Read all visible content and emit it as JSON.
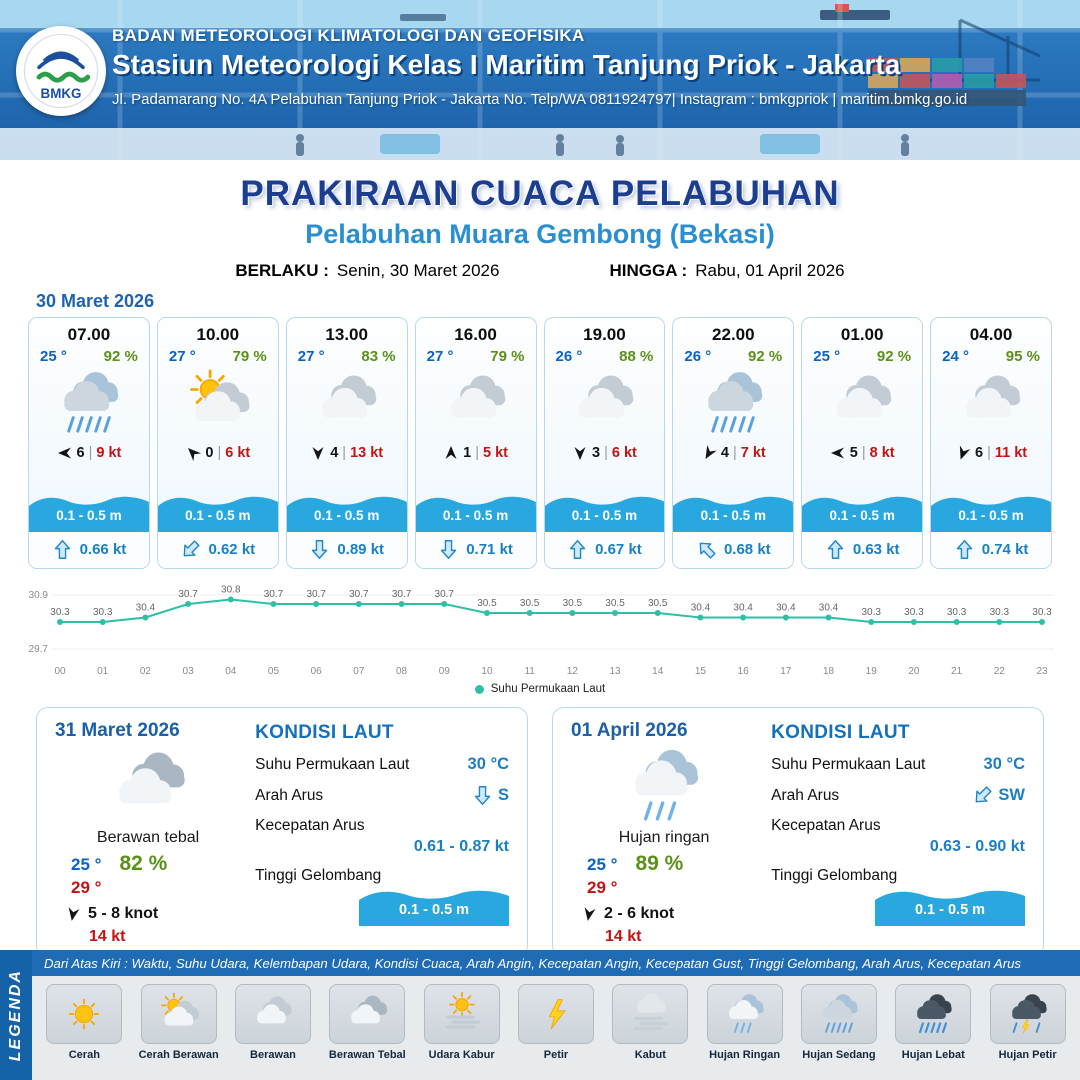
{
  "header": {
    "agency": "BADAN METEOROLOGI KLIMATOLOGI DAN GEOFISIKA",
    "station": "Stasiun Meteorologi Kelas I Maritim Tanjung Priok - Jakarta",
    "address": "Jl. Padamarang No. 4A Pelabuhan Tanjung Priok - Jakarta No. Telp/WA 0811924797| Instagram : bmkgpriok | maritim.bmkg.go.id",
    "logo_text": "BMKG"
  },
  "title": {
    "main": "PRAKIRAAN CUACA PELABUHAN",
    "port": "Pelabuhan Muara Gembong (Bekasi)",
    "valid_label": "BERLAKU :",
    "valid_value": "Senin, 30 Maret 2026",
    "until_label": "HINGGA :",
    "until_value": "Rabu, 01 April 2026"
  },
  "labels": {
    "wind_sep": "|"
  },
  "hourly": {
    "date": "30 Maret 2026",
    "cards": [
      {
        "time": "07.00",
        "temp": "25 °",
        "humidity": "92 %",
        "icon": "hujan-sedang",
        "wind": "6",
        "gust": "9 kt",
        "wind_deg": 180,
        "wave": "0.1 - 0.5 m",
        "current": "0.66 kt",
        "current_deg": 0
      },
      {
        "time": "10.00",
        "temp": "27 °",
        "humidity": "79 %",
        "icon": "cerah-berawan",
        "wind": "0",
        "gust": "6 kt",
        "wind_deg": 225,
        "wave": "0.1 - 0.5 m",
        "current": "0.62 kt",
        "current_deg": 225
      },
      {
        "time": "13.00",
        "temp": "27 °",
        "humidity": "83 %",
        "icon": "berawan",
        "wind": "4",
        "gust": "13 kt",
        "wind_deg": 90,
        "wave": "0.1 - 0.5 m",
        "current": "0.89 kt",
        "current_deg": 180
      },
      {
        "time": "16.00",
        "temp": "27 °",
        "humidity": "79 %",
        "icon": "berawan",
        "wind": "1",
        "gust": "5 kt",
        "wind_deg": 270,
        "wave": "0.1 - 0.5 m",
        "current": "0.71 kt",
        "current_deg": 180
      },
      {
        "time": "19.00",
        "temp": "26 °",
        "humidity": "88 %",
        "icon": "berawan",
        "wind": "3",
        "gust": "6 kt",
        "wind_deg": 90,
        "wave": "0.1 - 0.5 m",
        "current": "0.67 kt",
        "current_deg": 0
      },
      {
        "time": "22.00",
        "temp": "26 °",
        "humidity": "92 %",
        "icon": "hujan-sedang",
        "wind": "4",
        "gust": "7 kt",
        "wind_deg": 120,
        "wave": "0.1 - 0.5 m",
        "current": "0.68 kt",
        "current_deg": 315
      },
      {
        "time": "01.00",
        "temp": "25 °",
        "humidity": "92 %",
        "icon": "berawan",
        "wind": "5",
        "gust": "8 kt",
        "wind_deg": 180,
        "wave": "0.1 - 0.5 m",
        "current": "0.63 kt",
        "current_deg": 0
      },
      {
        "time": "04.00",
        "temp": "24 °",
        "humidity": "95 %",
        "icon": "berawan",
        "wind": "6",
        "gust": "11 kt",
        "wind_deg": 110,
        "wave": "0.1 - 0.5 m",
        "current": "0.74 kt",
        "current_deg": 0
      }
    ]
  },
  "chart_data": {
    "type": "line",
    "title": "",
    "xlabel": "",
    "ylabel": "",
    "x": [
      "00",
      "01",
      "02",
      "03",
      "04",
      "05",
      "06",
      "07",
      "08",
      "09",
      "10",
      "11",
      "12",
      "13",
      "14",
      "15",
      "16",
      "17",
      "18",
      "19",
      "20",
      "21",
      "22",
      "23"
    ],
    "series": [
      {
        "name": "Suhu Permukaan Laut",
        "values": [
          30.3,
          30.3,
          30.4,
          30.7,
          30.8,
          30.7,
          30.7,
          30.7,
          30.7,
          30.7,
          30.5,
          30.5,
          30.5,
          30.5,
          30.5,
          30.4,
          30.4,
          30.4,
          30.4,
          30.3,
          30.3,
          30.3,
          30.3,
          30.3
        ]
      }
    ],
    "ylim": [
      29.7,
      30.9
    ],
    "grid": false,
    "point_labels": true,
    "legend_position": "bottom",
    "line_color": "#2fbfa5"
  },
  "daily": [
    {
      "date": "31 Maret 2026",
      "icon": "berawan-tebal",
      "condition": "Berawan tebal",
      "temp_min": "25 °",
      "humidity": "82 %",
      "temp_max": "29 °",
      "wind": "5 - 8 knot",
      "gust": "14 kt",
      "wind_deg": 100,
      "sea": {
        "title": "KONDISI LAUT",
        "sst_label": "Suhu Permukaan Laut",
        "sst": "30 °C",
        "dir_label": "Arah Arus",
        "dir": "S",
        "dir_deg": 180,
        "speed_label": "Kecepatan Arus",
        "speed": "0.61 - 0.87 kt",
        "wave_label": "Tinggi Gelombang",
        "wave": "0.1 - 0.5 m"
      }
    },
    {
      "date": "01 April 2026",
      "icon": "hujan-ringan",
      "condition": "Hujan ringan",
      "temp_min": "25 °",
      "humidity": "89 %",
      "temp_max": "29 °",
      "wind": "2 - 6 knot",
      "gust": "14 kt",
      "wind_deg": 100,
      "sea": {
        "title": "KONDISI LAUT",
        "sst_label": "Suhu Permukaan Laut",
        "sst": "30 °C",
        "dir_label": "Arah Arus",
        "dir": "SW",
        "dir_deg": 225,
        "speed_label": "Kecepatan Arus",
        "speed": "0.63 - 0.90 kt",
        "wave_label": "Tinggi Gelombang",
        "wave": "0.1 - 0.5 m"
      }
    }
  ],
  "legend": {
    "side_title": "LEGENDA",
    "description": "Dari Atas Kiri : Waktu, Suhu Udara, Kelembapan Udara, Kondisi Cuaca, Arah Angin, Kecepatan Angin, Kecepatan Gust, Tinggi Gelombang, Arah Arus, Kecepatan Arus",
    "items": [
      {
        "label": "Cerah",
        "icon": "cerah"
      },
      {
        "label": "Cerah Berawan",
        "icon": "cerah-berawan"
      },
      {
        "label": "Berawan",
        "icon": "berawan"
      },
      {
        "label": "Berawan Tebal",
        "icon": "berawan-tebal"
      },
      {
        "label": "Udara Kabur",
        "icon": "udara-kabur"
      },
      {
        "label": "Petir",
        "icon": "petir"
      },
      {
        "label": "Kabut",
        "icon": "kabut"
      },
      {
        "label": "Hujan Ringan",
        "icon": "hujan-ringan"
      },
      {
        "label": "Hujan Sedang",
        "icon": "hujan-sedang"
      },
      {
        "label": "Hujan Lebat",
        "icon": "hujan-lebat"
      },
      {
        "label": "Hujan Petir",
        "icon": "hujan-petir"
      }
    ]
  },
  "colors": {
    "header_blue": "#1f6cb4",
    "title_navy": "#1b3e91",
    "subtitle_blue": "#2a8fd0",
    "temp_blue": "#0a62c8",
    "humidity_green": "#5a9116",
    "wind_red": "#c81111",
    "wave_blue": "#29a8e0",
    "current_blue": "#1a7fc4",
    "chart_line": "#2fbfa5"
  }
}
